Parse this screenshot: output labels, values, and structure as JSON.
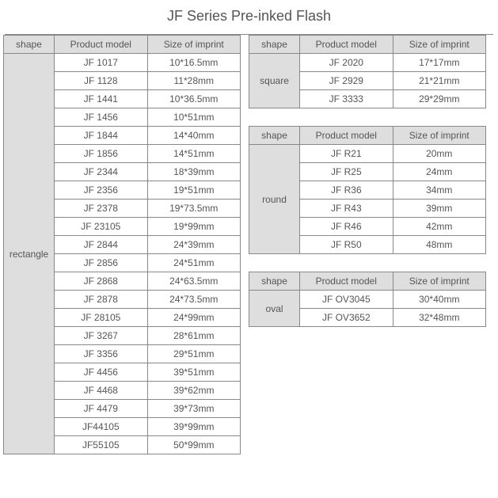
{
  "title": "JF Series Pre-inked Flash",
  "headers": {
    "shape": "shape",
    "model": "Product model",
    "size": "Size of imprint"
  },
  "colors": {
    "header_bg": "#dedede",
    "text": "#555555",
    "border": "#888888",
    "background": "#ffffff"
  },
  "tables": {
    "rectangle": {
      "shape_label": "rectangle",
      "rows": [
        {
          "model": "JF 1017",
          "size": "10*16.5mm"
        },
        {
          "model": "JF 1128",
          "size": "11*28mm"
        },
        {
          "model": "JF 1441",
          "size": "10*36.5mm"
        },
        {
          "model": "JF 1456",
          "size": "10*51mm"
        },
        {
          "model": "JF 1844",
          "size": "14*40mm"
        },
        {
          "model": "JF 1856",
          "size": "14*51mm"
        },
        {
          "model": "JF 2344",
          "size": "18*39mm"
        },
        {
          "model": "JF 2356",
          "size": "19*51mm"
        },
        {
          "model": "JF 2378",
          "size": "19*73.5mm"
        },
        {
          "model": "JF 23105",
          "size": "19*99mm"
        },
        {
          "model": "JF 2844",
          "size": "24*39mm"
        },
        {
          "model": "JF 2856",
          "size": "24*51mm"
        },
        {
          "model": "JF 2868",
          "size": "24*63.5mm"
        },
        {
          "model": "JF 2878",
          "size": "24*73.5mm"
        },
        {
          "model": "JF 28105",
          "size": "24*99mm"
        },
        {
          "model": "JF 3267",
          "size": "28*61mm"
        },
        {
          "model": "JF 3356",
          "size": "29*51mm"
        },
        {
          "model": "JF 4456",
          "size": "39*51mm"
        },
        {
          "model": "JF 4468",
          "size": "39*62mm"
        },
        {
          "model": "JF 4479",
          "size": "39*73mm"
        },
        {
          "model": "JF44105",
          "size": "39*99mm"
        },
        {
          "model": "JF55105",
          "size": "50*99mm"
        }
      ]
    },
    "square": {
      "shape_label": "square",
      "rows": [
        {
          "model": "JF 2020",
          "size": "17*17mm"
        },
        {
          "model": "JF 2929",
          "size": "21*21mm"
        },
        {
          "model": "JF 3333",
          "size": "29*29mm"
        }
      ]
    },
    "round": {
      "shape_label": "round",
      "rows": [
        {
          "model": "JF R21",
          "size": "20mm"
        },
        {
          "model": "JF R25",
          "size": "24mm"
        },
        {
          "model": "JF R36",
          "size": "34mm"
        },
        {
          "model": "JF R43",
          "size": "39mm"
        },
        {
          "model": "JF R46",
          "size": "42mm"
        },
        {
          "model": "JF R50",
          "size": "48mm"
        }
      ]
    },
    "oval": {
      "shape_label": "oval",
      "rows": [
        {
          "model": "JF OV3045",
          "size": "30*40mm"
        },
        {
          "model": "JF OV3652",
          "size": "32*48mm"
        }
      ]
    }
  }
}
